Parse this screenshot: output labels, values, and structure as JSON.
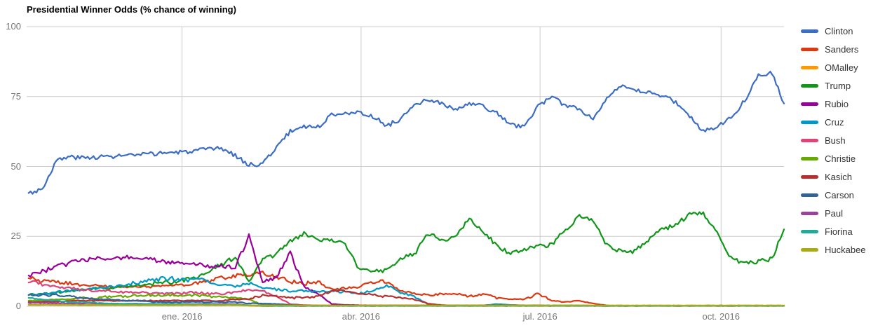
{
  "title": "Presidential Winner Odds (% chance of winning)",
  "colors": {
    "grid": "#cccccc",
    "axis_text": "#757575",
    "title_text": "#000000",
    "legend_text": "#333333"
  },
  "axes": {
    "y_labels": [
      "100",
      "75",
      "50",
      "25",
      "0"
    ],
    "x_labels": [
      "ene. 2016",
      "abr. 2016",
      "jul. 2016",
      "oct. 2016"
    ]
  },
  "chart_data": {
    "type": "line",
    "title": "Presidential Winner Odds (% chance of winning)",
    "ylabel": "% chance of winning",
    "ylim": [
      0,
      100
    ],
    "y_ticks": [
      0,
      25,
      50,
      75,
      100
    ],
    "grid": true,
    "legend_position": "right",
    "x_domain": [
      "2015-10-14",
      "2016-11-02"
    ],
    "x_tick_dates": [
      "2016-01-01",
      "2016-04-01",
      "2016-07-01",
      "2016-10-01"
    ],
    "x_tick_labels": [
      "ene. 2016",
      "abr. 2016",
      "jul. 2016",
      "oct. 2016"
    ],
    "x": [
      "2015-10-15",
      "2015-10-22",
      "2015-10-29",
      "2015-11-05",
      "2015-11-12",
      "2015-11-19",
      "2015-11-26",
      "2015-12-03",
      "2015-12-10",
      "2015-12-17",
      "2015-12-24",
      "2015-12-31",
      "2016-01-07",
      "2016-01-14",
      "2016-01-21",
      "2016-01-28",
      "2016-02-04",
      "2016-02-11",
      "2016-02-18",
      "2016-02-25",
      "2016-03-03",
      "2016-03-10",
      "2016-03-17",
      "2016-03-24",
      "2016-03-31",
      "2016-04-07",
      "2016-04-14",
      "2016-04-21",
      "2016-04-28",
      "2016-05-05",
      "2016-05-12",
      "2016-05-19",
      "2016-05-26",
      "2016-06-02",
      "2016-06-09",
      "2016-06-16",
      "2016-06-23",
      "2016-06-30",
      "2016-07-07",
      "2016-07-14",
      "2016-07-21",
      "2016-07-28",
      "2016-08-04",
      "2016-08-11",
      "2016-08-18",
      "2016-08-25",
      "2016-09-01",
      "2016-09-08",
      "2016-09-15",
      "2016-09-22",
      "2016-09-29",
      "2016-10-06",
      "2016-10-13",
      "2016-10-20",
      "2016-10-27",
      "2016-11-03"
    ],
    "series": [
      {
        "name": "Clinton",
        "color": "#3b6dc5",
        "values": [
          40.5,
          42,
          52,
          53.5,
          53,
          53.5,
          53.5,
          54,
          54,
          54.5,
          55,
          55,
          55.5,
          56,
          56.5,
          54,
          50.5,
          51,
          57,
          62.5,
          64.5,
          64,
          68.5,
          69.5,
          69,
          68,
          64.5,
          67,
          71.5,
          74,
          72.5,
          70,
          72.5,
          71.5,
          69,
          65,
          64,
          72,
          74.5,
          72,
          70.5,
          67,
          75,
          78.5,
          77,
          76.5,
          75.5,
          73,
          68,
          62.5,
          64.5,
          67.5,
          73.5,
          83,
          83.5,
          72.5
        ]
      },
      {
        "name": "Sanders",
        "color": "#dc3912",
        "values": [
          10,
          9,
          8.5,
          8,
          7.5,
          7.5,
          7,
          7,
          7,
          7,
          7.5,
          7.5,
          8,
          9,
          10,
          11,
          11,
          12,
          10.5,
          9,
          8,
          8.5,
          6,
          6.5,
          7,
          9,
          8.5,
          5.5,
          4.5,
          4,
          4.5,
          4.5,
          3.5,
          4.5,
          3,
          2.5,
          2.5,
          4.5,
          2,
          1.5,
          2,
          1,
          0.3,
          0.2,
          0.2,
          0.2,
          0.2,
          0.2,
          0.2,
          0.2,
          0.2,
          0.2,
          0.2,
          0.2,
          0.2,
          0.2
        ]
      },
      {
        "name": "OMalley",
        "color": "#ff9900",
        "values": [
          0.5,
          0.5,
          0.5,
          0.5,
          0.5,
          0.5,
          0.5,
          0.5,
          0.5,
          0.5,
          0.5,
          0.5,
          0.6,
          0.6,
          0.6,
          0.6,
          0.2,
          0.15,
          0.15,
          0.15,
          0.15,
          0.15,
          0.15,
          0.15,
          0.15,
          0.15,
          0.15,
          0.15,
          0.15,
          0.15,
          0.15,
          0.15,
          0.15,
          0.15,
          0.15,
          0.15,
          0.15,
          0.15,
          0.15,
          0.15,
          0.15,
          0.15,
          0.15,
          0.15,
          0.15,
          0.15,
          0.15,
          0.15,
          0.15,
          0.15,
          0.15,
          0.15,
          0.15,
          0.15,
          0.15,
          0.15
        ]
      },
      {
        "name": "Trump",
        "color": "#109618",
        "values": [
          4,
          4.5,
          5,
          5.5,
          6,
          6.5,
          6.5,
          7,
          7.5,
          8,
          8.5,
          9,
          10,
          12,
          15,
          17.5,
          9,
          17,
          18.5,
          23.5,
          26,
          23.5,
          24,
          22,
          13.5,
          12.5,
          13,
          17,
          18.5,
          26,
          23.5,
          25,
          31.5,
          26.5,
          22,
          18.5,
          20.5,
          21.5,
          22,
          27.5,
          32,
          30.5,
          22,
          19.5,
          19.5,
          24,
          27.5,
          29,
          33,
          33,
          26.5,
          17,
          15.5,
          16,
          17,
          27.5
        ]
      },
      {
        "name": "Rubio",
        "color": "#990099",
        "values": [
          11,
          12.5,
          14,
          15.5,
          16.5,
          17,
          17,
          17.5,
          17,
          16.5,
          16,
          15.5,
          15,
          14.5,
          14.5,
          14,
          25,
          8.5,
          10.5,
          19,
          7,
          4.5,
          0.8,
          0.5,
          0.4,
          0.3,
          0.3,
          0.3,
          0.3,
          0.3,
          0.2,
          0.2,
          0.2,
          0.2,
          0.2,
          0.2,
          0.2,
          0.2,
          0.2,
          0.2,
          0.2,
          0.2,
          0.2,
          0.2,
          0.2,
          0.2,
          0.2,
          0.2,
          0.2,
          0.2,
          0.2,
          0.2,
          0.2,
          0.2,
          0.2,
          0.2
        ]
      },
      {
        "name": "Cruz",
        "color": "#0099c6",
        "values": [
          4,
          4.5,
          5,
          5.5,
          6,
          6.5,
          7,
          7.5,
          8.5,
          9.5,
          10,
          9.5,
          9.5,
          9,
          8,
          7,
          8.5,
          6.5,
          6,
          5.5,
          5.5,
          5,
          5.5,
          5,
          4.5,
          5.5,
          7.5,
          5,
          3.5,
          0.6,
          0.3,
          0.3,
          0.3,
          0.3,
          0.8,
          0.5,
          0.3,
          0.3,
          0.3,
          0.3,
          0.3,
          0.2,
          0.2,
          0.2,
          0.2,
          0.2,
          0.2,
          0.2,
          0.2,
          0.2,
          0.2,
          0.2,
          0.2,
          0.2,
          0.2,
          0.2
        ]
      },
      {
        "name": "Bush",
        "color": "#dd4477",
        "values": [
          8.5,
          8,
          7,
          6.5,
          6,
          5.5,
          5.5,
          5,
          5,
          4.5,
          4.5,
          4.5,
          5,
          4.5,
          4.5,
          5,
          6,
          5.5,
          3.5,
          0.8,
          0.4,
          0.3,
          0.3,
          0.3,
          0.3,
          0.3,
          0.3,
          0.3,
          0.3,
          0.3,
          0.2,
          0.2,
          0.2,
          0.2,
          0.2,
          0.2,
          0.2,
          0.2,
          0.2,
          0.2,
          0.2,
          0.2,
          0.2,
          0.2,
          0.2,
          0.2,
          0.2,
          0.2,
          0.2,
          0.2,
          0.2,
          0.2,
          0.2,
          0.2,
          0.2,
          0.2
        ]
      },
      {
        "name": "Christie",
        "color": "#66aa00",
        "values": [
          2,
          2,
          2.5,
          2.5,
          3,
          3,
          3.5,
          3.5,
          4,
          4,
          4,
          4,
          4,
          3.5,
          3.5,
          3,
          2.5,
          0.5,
          0.2,
          0.2,
          0.2,
          0.2,
          0.2,
          0.2,
          0.2,
          0.2,
          0.2,
          0.2,
          0.2,
          0.2,
          0.2,
          0.2,
          0.2,
          0.2,
          0.2,
          0.2,
          0.2,
          0.2,
          0.2,
          0.2,
          0.2,
          0.2,
          0.2,
          0.2,
          0.2,
          0.2,
          0.2,
          0.2,
          0.2,
          0.2,
          0.2,
          0.2,
          0.2,
          0.2,
          0.2,
          0.2
        ]
      },
      {
        "name": "Kasich",
        "color": "#b82e2e",
        "values": [
          1.5,
          1.5,
          1.5,
          2,
          2,
          2,
          2,
          2,
          2,
          2,
          2,
          2,
          2,
          2,
          2,
          2.5,
          2.5,
          4,
          3.5,
          3,
          3,
          3.5,
          5.5,
          5.5,
          4.5,
          4,
          3.5,
          3,
          2.5,
          1,
          0.4,
          0.3,
          0.3,
          0.3,
          0.3,
          0.3,
          0.3,
          0.3,
          0.2,
          0.2,
          0.2,
          0.2,
          0.2,
          0.2,
          0.2,
          0.2,
          0.2,
          0.2,
          0.2,
          0.2,
          0.2,
          0.2,
          0.2,
          0.2,
          0.2,
          0.2
        ]
      },
      {
        "name": "Carson",
        "color": "#316395",
        "values": [
          4,
          4,
          4,
          3.5,
          3,
          2.5,
          2.5,
          2,
          2,
          1.5,
          1.5,
          1.5,
          1.5,
          1.5,
          1.5,
          1.5,
          1,
          1,
          0.8,
          0.5,
          0.3,
          0.2,
          0.2,
          0.2,
          0.2,
          0.2,
          0.2,
          0.2,
          0.2,
          0.2,
          0.2,
          0.2,
          0.2,
          0.2,
          0.2,
          0.2,
          0.2,
          0.2,
          0.2,
          0.2,
          0.2,
          0.2,
          0.2,
          0.2,
          0.2,
          0.2,
          0.2,
          0.2,
          0.2,
          0.2,
          0.2,
          0.2,
          0.2,
          0.2,
          0.2,
          0.2
        ]
      },
      {
        "name": "Paul",
        "color": "#994499",
        "values": [
          1.2,
          1.2,
          1.1,
          1,
          1,
          1,
          0.9,
          0.9,
          0.9,
          0.8,
          0.8,
          0.8,
          0.8,
          0.8,
          0.8,
          0.8,
          0.3,
          0.15,
          0.15,
          0.15,
          0.15,
          0.15,
          0.15,
          0.15,
          0.15,
          0.15,
          0.15,
          0.15,
          0.15,
          0.15,
          0.15,
          0.15,
          0.15,
          0.15,
          0.15,
          0.15,
          0.15,
          0.15,
          0.15,
          0.15,
          0.15,
          0.15,
          0.15,
          0.15,
          0.15,
          0.15,
          0.15,
          0.15,
          0.15,
          0.15,
          0.15,
          0.15,
          0.15,
          0.15,
          0.15,
          0.15
        ]
      },
      {
        "name": "Fiorina",
        "color": "#22aa99",
        "values": [
          3,
          2.5,
          2,
          1.5,
          1.5,
          1.2,
          1,
          0.9,
          0.8,
          0.8,
          0.8,
          0.8,
          0.7,
          0.7,
          0.6,
          0.6,
          0.4,
          0.15,
          0.15,
          0.15,
          0.15,
          0.15,
          0.15,
          0.15,
          0.15,
          0.15,
          0.15,
          0.15,
          0.15,
          0.15,
          0.15,
          0.15,
          0.15,
          0.15,
          0.15,
          0.15,
          0.15,
          0.15,
          0.15,
          0.15,
          0.15,
          0.15,
          0.15,
          0.15,
          0.15,
          0.15,
          0.15,
          0.15,
          0.15,
          0.15,
          0.15,
          0.15,
          0.15,
          0.15,
          0.15,
          0.15
        ]
      },
      {
        "name": "Huckabee",
        "color": "#aaaa11",
        "values": [
          0.5,
          0.5,
          0.5,
          0.5,
          0.4,
          0.4,
          0.4,
          0.4,
          0.4,
          0.4,
          0.4,
          0.4,
          0.4,
          0.4,
          0.4,
          0.4,
          0.3,
          0.3,
          0.3,
          0.3,
          0.3,
          0.3,
          0.3,
          0.3,
          0.3,
          0.3,
          0.3,
          0.3,
          0.3,
          0.3,
          0.3,
          0.3,
          0.3,
          0.3,
          0.3,
          0.3,
          0.3,
          0.3,
          0.3,
          0.3,
          0.3,
          0.3,
          0.3,
          0.3,
          0.3,
          0.3,
          0.3,
          0.3,
          0.3,
          0.3,
          0.3,
          0.3,
          0.3,
          0.3,
          0.3,
          0.3
        ]
      }
    ]
  }
}
